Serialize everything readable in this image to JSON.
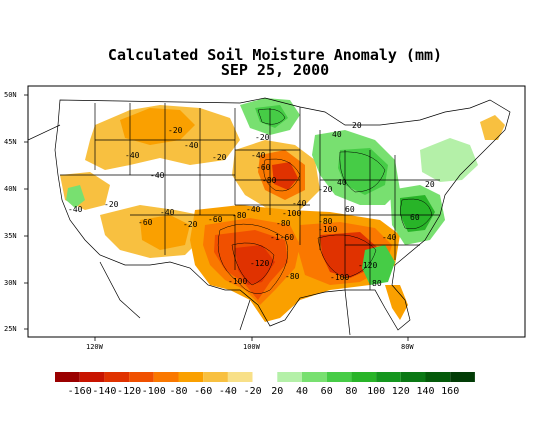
{
  "title": {
    "line1": "Calculated Soil Moisture Anomaly (mm)",
    "line2": "SEP 25, 2000"
  },
  "axes": {
    "lat_labels": [
      "50N",
      "45N",
      "40N",
      "35N",
      "30N",
      "25N"
    ],
    "lon_labels": [
      "120W",
      "100W",
      "80W"
    ]
  },
  "contour_labels": [
    "-20",
    "-40",
    "-60",
    "-80",
    "-100",
    "-120",
    "-1-60",
    "20",
    "40",
    "60",
    "80",
    "100"
  ],
  "legend": {
    "labels": [
      "-160",
      "-140",
      "-120",
      "-100",
      "-80",
      "-60",
      "-40",
      "-20",
      "20",
      "40",
      "60",
      "80",
      "100",
      "120",
      "140",
      "160"
    ],
    "colors": [
      "#9a0000",
      "#c81400",
      "#e03200",
      "#f05000",
      "#fa7800",
      "#faa000",
      "#f8c040",
      "#f8e088",
      "#ffffff",
      "#b4f0a8",
      "#78e070",
      "#46cc46",
      "#28b428",
      "#14961e",
      "#0a7814",
      "#045a0a",
      "#023c06"
    ]
  }
}
